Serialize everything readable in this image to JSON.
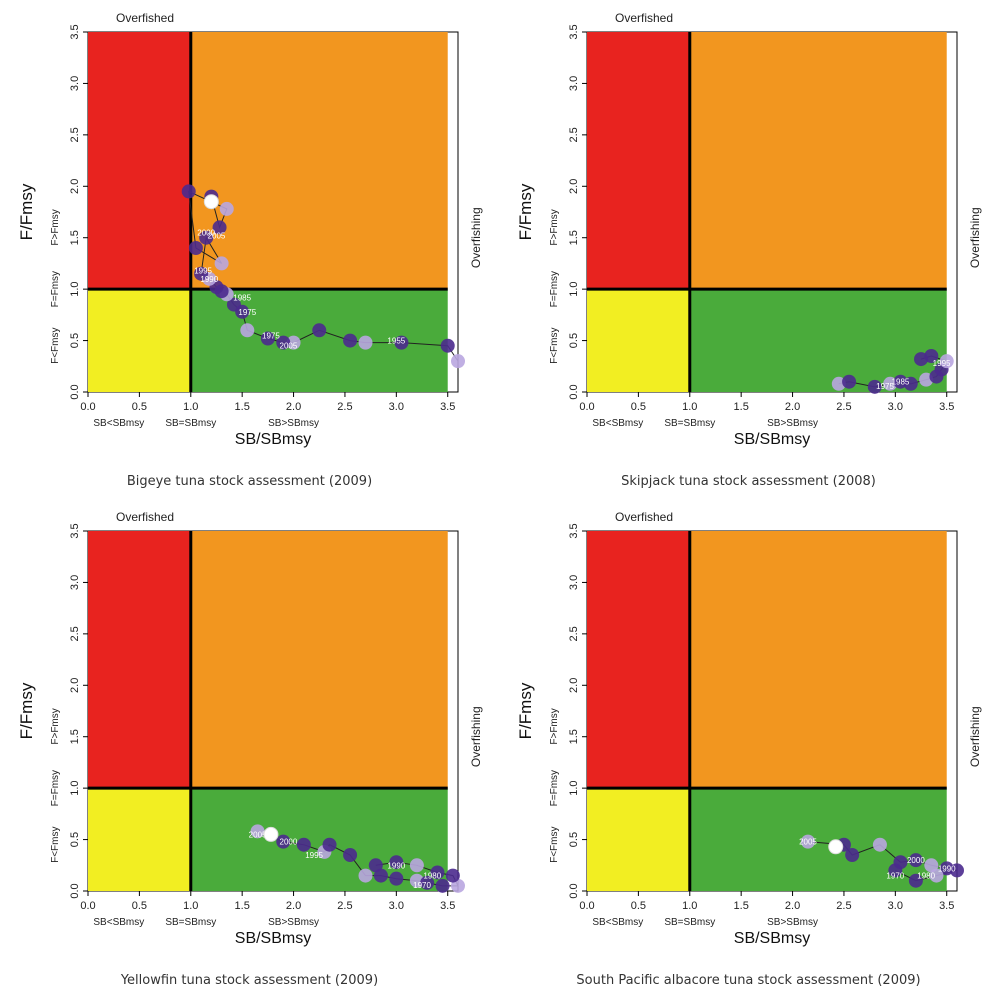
{
  "colors": {
    "red": "#e8231f",
    "orange": "#f2961f",
    "yellow": "#f2ee22",
    "green": "#4aab3b",
    "line": "#000000",
    "point_dark": "#4b2a8e",
    "point_light": "#b9a6e0",
    "current": "#ffffff"
  },
  "chart_data": [
    {
      "type": "scatter",
      "caption": "Bigeye tuna stock assessment (2009)",
      "top_label": "Overfished",
      "side_label": "Overfishing",
      "xlabel": "SB/SBmsy",
      "ylabel": "F/Fmsy",
      "xlim": [
        0,
        3.6
      ],
      "ylim": [
        0,
        3.5
      ],
      "xticks": [
        "0.0",
        "0.5",
        "1.0",
        "1.5",
        "2.0",
        "2.5",
        "3.0",
        "3.5"
      ],
      "yticks": [
        "0.0",
        "0.5",
        "1.0",
        "1.5",
        "2.0",
        "2.5",
        "3.0",
        "3.5"
      ],
      "x_zone_labels": [
        "SB<SBmsy",
        "SB=SBmsy",
        "SB>SBmsy"
      ],
      "y_zone_labels": [
        "F<Fmsy",
        "F=Fmsy",
        "F>Fmsy"
      ],
      "x": [
        3.6,
        3.5,
        3.05,
        2.7,
        2.55,
        2.25,
        2.0,
        1.9,
        1.75,
        1.55,
        1.5,
        1.42,
        1.35,
        1.3,
        1.25,
        1.18,
        1.1,
        1.15,
        1.3,
        1.05,
        0.98,
        1.35,
        1.28,
        1.2
      ],
      "y": [
        0.3,
        0.45,
        0.48,
        0.48,
        0.5,
        0.6,
        0.48,
        0.48,
        0.52,
        0.6,
        0.78,
        0.85,
        0.95,
        0.98,
        1.02,
        1.1,
        1.15,
        1.5,
        1.25,
        1.4,
        1.95,
        1.78,
        1.6,
        1.9
      ],
      "point_labels": [
        {
          "x": 1.95,
          "y": 0.45,
          "text": "2005"
        },
        {
          "x": 1.78,
          "y": 0.55,
          "text": "1975"
        },
        {
          "x": 1.55,
          "y": 0.78,
          "text": "1975"
        },
        {
          "x": 1.5,
          "y": 0.92,
          "text": "1985"
        },
        {
          "x": 1.18,
          "y": 1.1,
          "text": "1990"
        },
        {
          "x": 1.12,
          "y": 1.18,
          "text": "1995"
        },
        {
          "x": 1.15,
          "y": 1.55,
          "text": "2000"
        },
        {
          "x": 1.25,
          "y": 1.52,
          "text": "2005"
        },
        {
          "x": 3.0,
          "y": 0.5,
          "text": "1955"
        }
      ],
      "current": {
        "x": 1.2,
        "y": 1.85
      }
    },
    {
      "type": "scatter",
      "caption": "Skipjack tuna stock assessment (2008)",
      "top_label": "Overfished",
      "side_label": "Overfishing",
      "xlabel": "SB/SBmsy",
      "ylabel": "F/Fmsy",
      "xlim": [
        0,
        3.6
      ],
      "ylim": [
        0,
        3.5
      ],
      "xticks": [
        "0.0",
        "0.5",
        "1.0",
        "1.5",
        "2.0",
        "2.5",
        "3.0",
        "3.5"
      ],
      "yticks": [
        "0.0",
        "0.5",
        "1.0",
        "1.5",
        "2.0",
        "2.5",
        "3.0",
        "3.5"
      ],
      "x_zone_labels": [
        "SB<SBmsy",
        "SB=SBmsy",
        "SB>SBmsy"
      ],
      "y_zone_labels": [
        "F<Fmsy",
        "F=Fmsy",
        "F>Fmsy"
      ],
      "x": [
        2.45,
        2.55,
        2.8,
        2.95,
        3.05,
        3.15,
        3.3,
        3.4,
        3.45,
        3.5,
        3.35,
        3.25
      ],
      "y": [
        0.08,
        0.1,
        0.05,
        0.08,
        0.1,
        0.08,
        0.12,
        0.15,
        0.22,
        0.3,
        0.35,
        0.32
      ],
      "point_labels": [
        {
          "x": 3.45,
          "y": 0.28,
          "text": "1995"
        },
        {
          "x": 3.05,
          "y": 0.1,
          "text": "1985"
        },
        {
          "x": 2.9,
          "y": 0.06,
          "text": "1975"
        }
      ],
      "current": null
    },
    {
      "type": "scatter",
      "caption": "Yellowfin tuna stock assessment (2009)",
      "top_label": "Overfished",
      "side_label": "Overfishing",
      "xlabel": "SB/SBmsy",
      "ylabel": "F/Fmsy",
      "xlim": [
        0,
        3.6
      ],
      "ylim": [
        0,
        3.5
      ],
      "xticks": [
        "0.0",
        "0.5",
        "1.0",
        "1.5",
        "2.0",
        "2.5",
        "3.0",
        "3.5"
      ],
      "yticks": [
        "0.0",
        "0.5",
        "1.0",
        "1.5",
        "2.0",
        "2.5",
        "3.0",
        "3.5"
      ],
      "x_zone_labels": [
        "SB<SBmsy",
        "SB=SBmsy",
        "SB>SBmsy"
      ],
      "y_zone_labels": [
        "F<Fmsy",
        "F=Fmsy",
        "F>Fmsy"
      ],
      "x": [
        1.65,
        1.9,
        2.1,
        2.3,
        2.35,
        2.55,
        2.7,
        2.85,
        3.0,
        3.2,
        3.3,
        3.45,
        3.6,
        3.55,
        3.4,
        3.2,
        3.0,
        2.8
      ],
      "y": [
        0.58,
        0.48,
        0.45,
        0.38,
        0.45,
        0.35,
        0.15,
        0.15,
        0.12,
        0.1,
        0.08,
        0.05,
        0.05,
        0.15,
        0.18,
        0.25,
        0.28,
        0.25
      ],
      "point_labels": [
        {
          "x": 1.65,
          "y": 0.55,
          "text": "2005"
        },
        {
          "x": 1.95,
          "y": 0.48,
          "text": "2000"
        },
        {
          "x": 2.2,
          "y": 0.35,
          "text": "1995"
        },
        {
          "x": 3.0,
          "y": 0.25,
          "text": "1990"
        },
        {
          "x": 3.35,
          "y": 0.15,
          "text": "1980"
        },
        {
          "x": 3.25,
          "y": 0.06,
          "text": "1970"
        }
      ],
      "current": {
        "x": 1.78,
        "y": 0.55
      }
    },
    {
      "type": "scatter",
      "caption": "South Pacific albacore tuna stock assessment (2009)",
      "top_label": "Overfished",
      "side_label": "Overfishing",
      "xlabel": "SB/SBmsy",
      "ylabel": "F/Fmsy",
      "xlim": [
        0,
        3.6
      ],
      "ylim": [
        0,
        3.5
      ],
      "xticks": [
        "0.0",
        "0.5",
        "1.0",
        "1.5",
        "2.0",
        "2.5",
        "3.0",
        "3.5"
      ],
      "yticks": [
        "0.0",
        "0.5",
        "1.0",
        "1.5",
        "2.0",
        "2.5",
        "3.0",
        "3.5"
      ],
      "x_zone_labels": [
        "SB<SBmsy",
        "SB=SBmsy",
        "SB>SBmsy"
      ],
      "y_zone_labels": [
        "F<Fmsy",
        "F=Fmsy",
        "F>Fmsy"
      ],
      "x": [
        2.15,
        2.5,
        2.58,
        2.85,
        3.05,
        3.2,
        3.35,
        3.5,
        3.6,
        3.4,
        3.2,
        3.0
      ],
      "y": [
        0.48,
        0.45,
        0.35,
        0.45,
        0.28,
        0.3,
        0.25,
        0.22,
        0.2,
        0.15,
        0.1,
        0.2
      ],
      "point_labels": [
        {
          "x": 2.15,
          "y": 0.48,
          "text": "2005"
        },
        {
          "x": 3.2,
          "y": 0.3,
          "text": "2000"
        },
        {
          "x": 3.5,
          "y": 0.22,
          "text": "1990"
        },
        {
          "x": 3.3,
          "y": 0.15,
          "text": "1980"
        },
        {
          "x": 3.0,
          "y": 0.15,
          "text": "1970"
        }
      ],
      "current": {
        "x": 2.42,
        "y": 0.43
      }
    }
  ]
}
